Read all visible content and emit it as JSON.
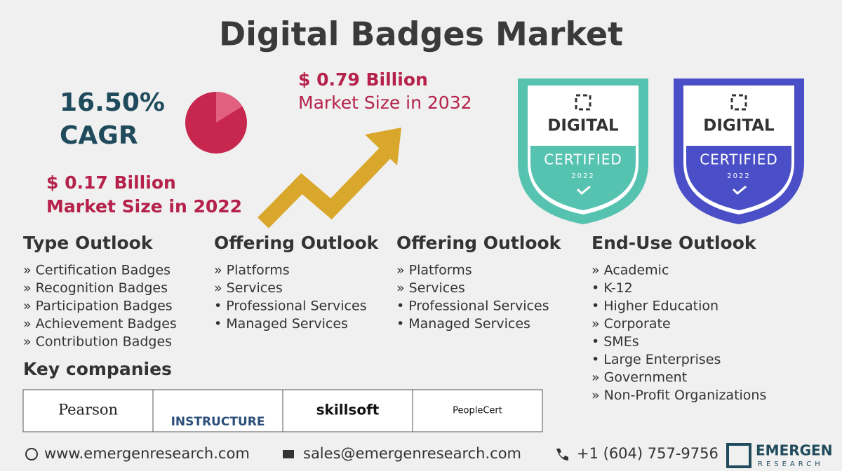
{
  "header": {
    "title": "Digital Badges Market"
  },
  "highlights": {
    "cagr_value": "16.50%",
    "cagr_label": "CAGR",
    "size_2022_value": "$ 0.17 Billion",
    "size_2022_label": "Market Size in 2022",
    "size_2032_value": "$ 0.79 Billion",
    "size_2032_label": "Market Size in 2032"
  },
  "badges": [
    {
      "line1": "DIGITAL",
      "line2": "CERTIFIED",
      "line3": "2022"
    },
    {
      "line1": "DIGITAL",
      "line2": "CERTIFIED",
      "line3": "2022"
    }
  ],
  "outlooks": [
    {
      "heading": "Type Outlook",
      "items": [
        "» Certification Badges",
        "» Recognition Badges",
        "» Participation Badges",
        "» Achievement Badges",
        "» Contribution Badges"
      ]
    },
    {
      "heading": "Offering Outlook",
      "items": [
        "» Platforms",
        "» Services",
        "• Professional Services",
        "• Managed Services"
      ]
    },
    {
      "heading": "Offering Outlook",
      "items": [
        "» Platforms",
        "» Services",
        "• Professional Services",
        "• Managed Services"
      ]
    },
    {
      "heading": "End-Use Outlook",
      "items": [
        "» Academic",
        "• K-12",
        "• Higher Education",
        "» Corporate",
        "• SMEs",
        "• Large Enterprises",
        "» Government",
        "» Non-Profit Organizations"
      ]
    }
  ],
  "key_companies": {
    "heading": "Key companies",
    "logos": [
      "Pearson",
      "INSTRUCTURE",
      "skillsoft",
      "PeopleCert"
    ]
  },
  "footer": {
    "website": "www.emergenresearch.com",
    "email": "sales@emergenresearch.com",
    "phone": "+1 (604) 757-9756",
    "brand": "EMERGEN",
    "brand_sub": "RESEARCH"
  }
}
